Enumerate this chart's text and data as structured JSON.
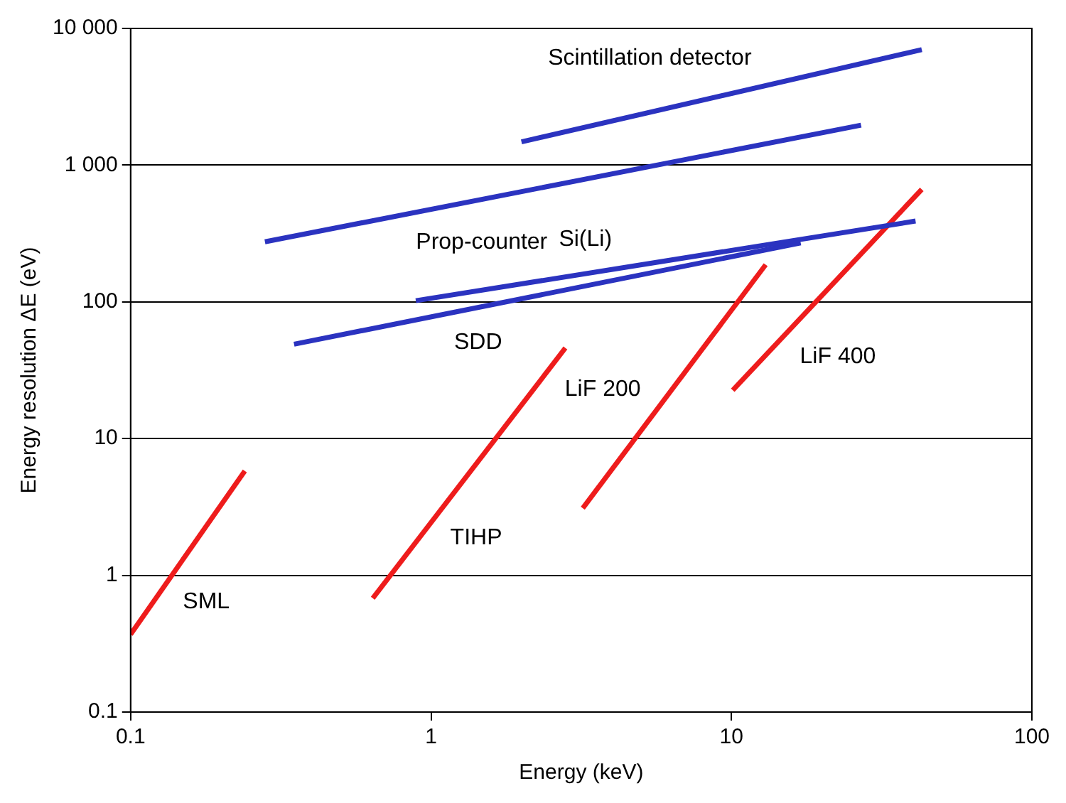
{
  "chart_data": {
    "type": "line",
    "xlabel": "Energy (keV)",
    "ylabel": "Energy resolution ΔE (eV)",
    "log": "xy",
    "grid": "y",
    "marker": "none",
    "line_style": "solid",
    "xlim": [
      0.1,
      100
    ],
    "xticks": [
      0.1,
      1,
      10,
      100
    ],
    "ylim": [
      0.1,
      10000
    ],
    "yticks": [
      0.1,
      1,
      10,
      100,
      {
        "value": 1000,
        "label": "1 000"
      },
      {
        "value": 10000,
        "label": "10 000"
      }
    ],
    "series": [
      {
        "name": "Scintillation detector",
        "type": "line",
        "color": "#2b33c0",
        "x": [
          2.0,
          43
        ],
        "values": [
          1480,
          7000
        ]
      },
      {
        "name": "Prop-counter",
        "type": "line",
        "color": "#2b33c0",
        "x": [
          0.28,
          27
        ],
        "values": [
          275,
          1960
        ]
      },
      {
        "name": "Si(Li)",
        "type": "line",
        "color": "#2b33c0",
        "x": [
          0.89,
          41
        ],
        "values": [
          102,
          390
        ]
      },
      {
        "name": "SDD",
        "type": "line",
        "color": "#2b33c0",
        "x": [
          0.35,
          17
        ],
        "values": [
          49,
          270
        ]
      },
      {
        "name": "SML",
        "type": "line",
        "color": "#ee1c1c",
        "x": [
          0.1,
          0.24
        ],
        "values": [
          0.37,
          5.8
        ]
      },
      {
        "name": "TIHP",
        "type": "line",
        "color": "#ee1c1c",
        "x": [
          0.64,
          2.8
        ],
        "values": [
          0.68,
          46
        ]
      },
      {
        "name": "LiF 200",
        "type": "line",
        "color": "#ee1c1c",
        "x": [
          3.2,
          13
        ],
        "values": [
          3.1,
          187
        ]
      },
      {
        "name": "LiF 400",
        "type": "line",
        "color": "#ee1c1c",
        "x": [
          10.1,
          43
        ],
        "values": [
          22.6,
          665
        ]
      }
    ]
  }
}
